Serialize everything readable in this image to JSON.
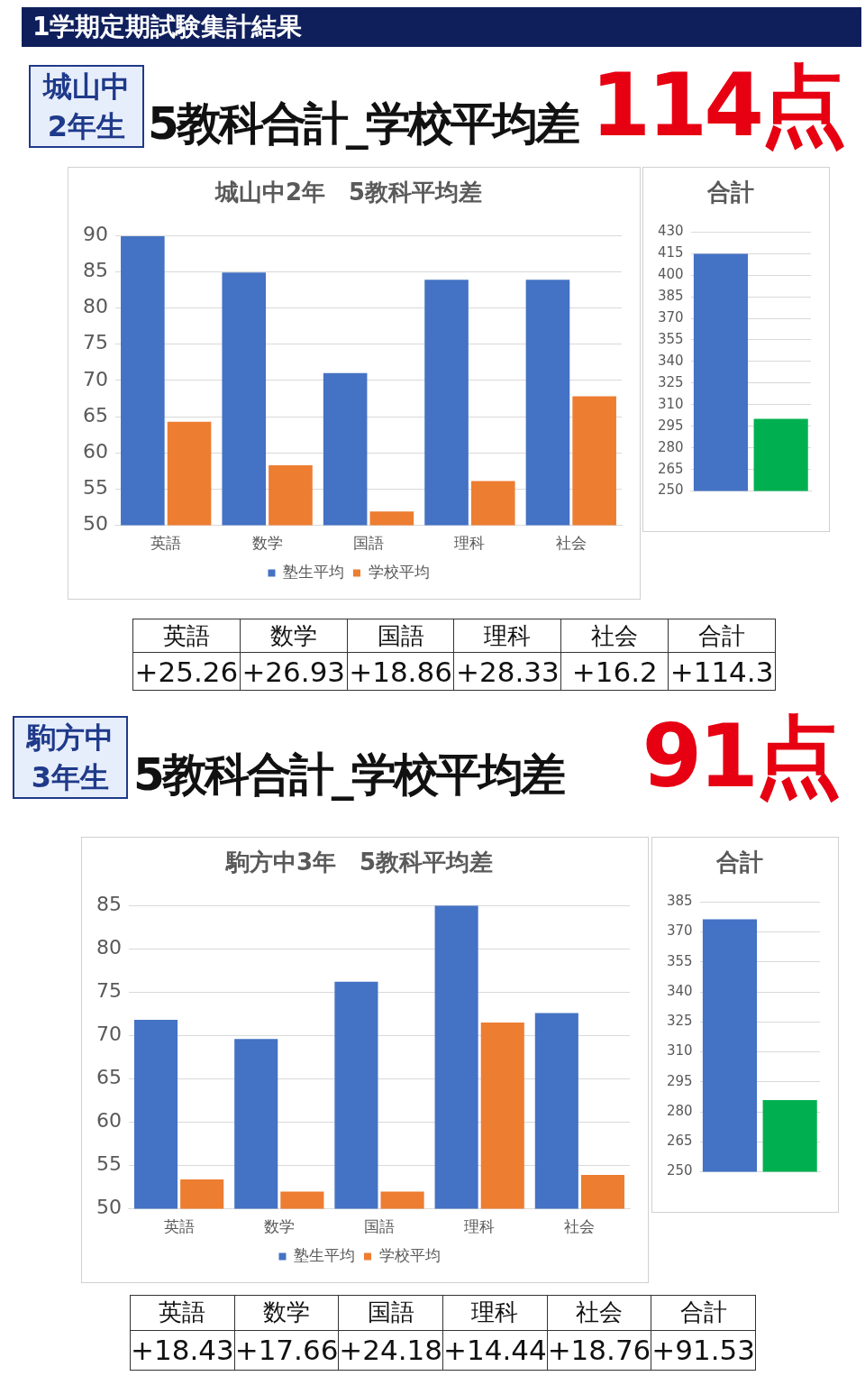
{
  "chart_data": [
    {
      "type": "other",
      "title": "1学期定期試験集計結果",
      "annotations": [
        "城山中",
        "2年生",
        "5教科合計_学校平均差",
        "114点"
      ]
    },
    {
      "type": "bar",
      "title": "城山中2年　5教科平均差",
      "categories": [
        "英語",
        "数学",
        "国語",
        "理科",
        "社会"
      ],
      "series": [
        {
          "name": "塾生平均",
          "color": "#4472c4",
          "values": [
            89.9,
            84.9,
            71.0,
            83.9,
            83.9
          ]
        },
        {
          "name": "学校平均",
          "color": "#ed7d31",
          "values": [
            64.3,
            58.3,
            51.9,
            56.1,
            67.8
          ]
        }
      ],
      "ylim": [
        50,
        90
      ],
      "yticks": [
        50,
        55,
        60,
        65,
        70,
        75,
        80,
        85,
        90
      ],
      "grid": "y",
      "legend": "bottom"
    },
    {
      "type": "bar",
      "title": "合計",
      "categories": [
        null,
        null
      ],
      "values": [
        414.8,
        300.2
      ],
      "colors": [
        "#4472c4",
        "#00b050"
      ],
      "ylim": [
        250,
        430
      ],
      "yticks": [
        250,
        265,
        280,
        295,
        310,
        325,
        340,
        355,
        370,
        385,
        400,
        415,
        430
      ],
      "grid": "y"
    },
    {
      "type": "other",
      "categories": [
        "英語",
        "数学",
        "国語",
        "理科",
        "社会",
        "合計"
      ],
      "value_labels": [
        "+25.26",
        "+26.93",
        "+18.86",
        "+28.33",
        "+16.2",
        "+114.3"
      ]
    },
    {
      "type": "other",
      "annotations": [
        "駒方中",
        "3年生",
        "5教科合計_学校平均差",
        "91点"
      ]
    },
    {
      "type": "bar",
      "title": "駒方中3年　5教科平均差",
      "categories": [
        "英語",
        "数学",
        "国語",
        "理科",
        "社会"
      ],
      "series": [
        {
          "name": "塾生平均",
          "color": "#4472c4",
          "values": [
            71.8,
            69.6,
            76.2,
            85.0,
            72.6
          ]
        },
        {
          "name": "学校平均",
          "color": "#ed7d31",
          "values": [
            53.4,
            52.0,
            52.0,
            71.5,
            53.9
          ]
        }
      ],
      "ylim": [
        50,
        85
      ],
      "yticks": [
        50,
        55,
        60,
        65,
        70,
        75,
        80,
        85
      ],
      "grid": "y",
      "legend": "bottom"
    },
    {
      "type": "bar",
      "title": "合計",
      "categories": [
        null,
        null
      ],
      "values": [
        376.3,
        285.9
      ],
      "colors": [
        "#4472c4",
        "#00b050"
      ],
      "ylim": [
        250,
        385
      ],
      "yticks": [
        250,
        265,
        280,
        295,
        310,
        325,
        340,
        355,
        370,
        385
      ],
      "grid": "y"
    },
    {
      "type": "other",
      "categories": [
        "英語",
        "数学",
        "国語",
        "理科",
        "社会",
        "合計"
      ],
      "value_labels": [
        "+18.43",
        "+17.66",
        "+24.18",
        "+14.44",
        "+18.76",
        "+91.53"
      ]
    }
  ]
}
